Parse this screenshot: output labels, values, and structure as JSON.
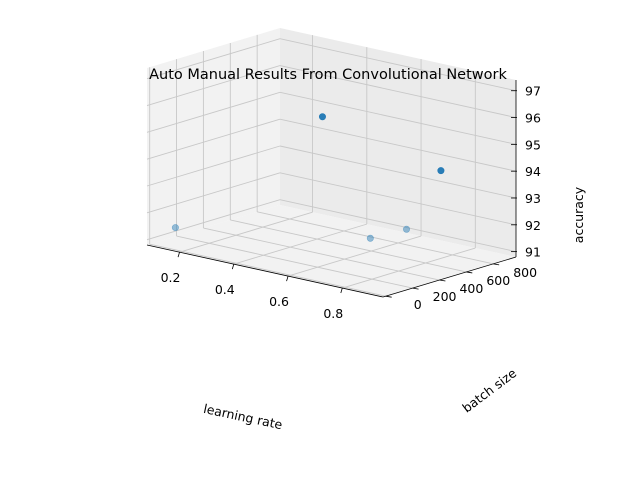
{
  "chart_data": {
    "type": "scatter",
    "projection": "3d",
    "title": "Auto Manual Results From Convolutional Network",
    "xlabel": "learning rate",
    "ylabel": "batch size",
    "zlabel": "accuracy",
    "xlim": [
      0.08,
      0.95
    ],
    "ylim": [
      -20,
      970
    ],
    "zlim": [
      90.8,
      97.4
    ],
    "x_ticks": [
      "0.2",
      "0.4",
      "0.6",
      "0.8"
    ],
    "y_ticks": [
      "0",
      "200",
      "400",
      "600",
      "800"
    ],
    "z_ticks": [
      "91",
      "92",
      "93",
      "94",
      "95",
      "96",
      "97"
    ],
    "grid": true,
    "points": [
      {
        "x": 0.15,
        "y": 50,
        "z": 91.5
      },
      {
        "x": 0.9,
        "y": 256,
        "z": 92.8
      },
      {
        "x": 0.83,
        "y": 128,
        "z": 92.5
      },
      {
        "x": 0.4,
        "y": 640,
        "z": 95.3
      },
      {
        "x": 0.9,
        "y": 512,
        "z": 94.6
      }
    ],
    "colors": {
      "point": "#1f77b4",
      "pane_left": "#f2f2f2",
      "pane_back": "#ebebeb",
      "pane_floor": "#f2f2f2",
      "grid": "#c8c8c8"
    }
  }
}
